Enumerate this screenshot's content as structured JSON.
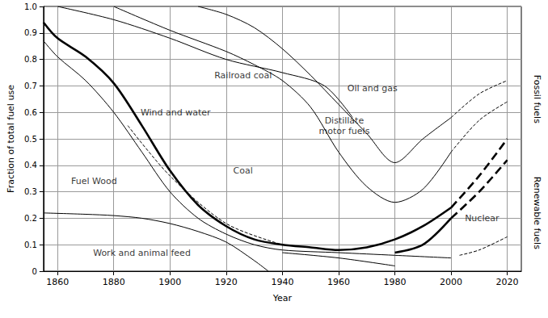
{
  "chart_data": {
    "type": "line",
    "xlabel": "Year",
    "ylabel": "Fraction of total fuel use",
    "xlim": [
      1855,
      2025
    ],
    "xticks": [
      1860,
      1880,
      1900,
      1920,
      1940,
      1960,
      1980,
      2000,
      2020
    ],
    "ylim": [
      0,
      1
    ],
    "yticks": [
      0,
      0.1,
      0.2,
      0.3,
      0.4,
      0.5,
      0.6,
      0.7,
      0.8,
      0.9,
      {
        "value": 1,
        "label": "1.0"
      }
    ],
    "grid": true,
    "series": [
      {
        "color": "#000000",
        "line_style": "solid",
        "x": [
          1855,
          1870,
          1880,
          1890,
          1900,
          1910,
          1920,
          1930,
          1935
        ],
        "values": [
          0.22,
          0.215,
          0.21,
          0.2,
          0.18,
          0.15,
          0.11,
          0.04,
          0
        ]
      },
      {
        "color": "#000000",
        "line_style": "solid",
        "x": [
          1940,
          1960,
          1980
        ],
        "values": [
          0.07,
          0.05,
          0.02
        ]
      },
      {
        "color": "#000000",
        "line_style": "solid",
        "x": [
          1855,
          1860,
          1870,
          1880,
          1890,
          1900,
          1910,
          1920,
          1930,
          1940,
          1960,
          1980,
          2000
        ],
        "values": [
          0.87,
          0.81,
          0.72,
          0.6,
          0.45,
          0.3,
          0.2,
          0.14,
          0.1,
          0.08,
          0.07,
          0.06,
          0.05
        ]
      },
      {
        "color": "#000000",
        "line_style": "dashed",
        "x": [
          2003,
          2010,
          2020
        ],
        "values": [
          0.06,
          0.08,
          0.13
        ]
      },
      {
        "color": "#000000",
        "line_style": "bold",
        "x": [
          1855,
          1860,
          1870,
          1880,
          1890,
          1900,
          1910,
          1920,
          1930,
          1940,
          1950,
          1960,
          1970,
          1980,
          1990,
          2000
        ],
        "values": [
          0.94,
          0.88,
          0.81,
          0.71,
          0.55,
          0.38,
          0.25,
          0.17,
          0.12,
          0.1,
          0.09,
          0.08,
          0.09,
          0.12,
          0.17,
          0.24
        ]
      },
      {
        "color": "#000000",
        "line_style": "bold-dashed",
        "x": [
          2000,
          2010,
          2020
        ],
        "values": [
          0.24,
          0.36,
          0.5
        ]
      },
      {
        "color": "#000000",
        "line_style": "dashed",
        "x": [
          1885,
          1900,
          1920,
          1940
        ],
        "values": [
          0.55,
          0.36,
          0.18,
          0.1
        ]
      },
      {
        "color": "#000000",
        "line_style": "bold",
        "x": [
          1980,
          1990,
          2000
        ],
        "values": [
          0.07,
          0.1,
          0.2
        ]
      },
      {
        "color": "#000000",
        "line_style": "bold-dashed",
        "x": [
          2000,
          2010,
          2020
        ],
        "values": [
          0.2,
          0.3,
          0.42
        ]
      },
      {
        "color": "#000000",
        "line_style": "solid",
        "x": [
          1860,
          1880,
          1900,
          1920,
          1940,
          1955,
          1965
        ],
        "values": [
          1,
          0.95,
          0.88,
          0.8,
          0.75,
          0.7,
          0.58
        ]
      },
      {
        "color": "#000000",
        "line_style": "solid",
        "x": [
          1880,
          1900,
          1920,
          1930,
          1940,
          1950,
          1960,
          1970,
          1980,
          1990,
          2000
        ],
        "values": [
          1,
          0.91,
          0.83,
          0.78,
          0.72,
          0.62,
          0.45,
          0.32,
          0.26,
          0.31,
          0.45
        ]
      },
      {
        "color": "#000000",
        "line_style": "dashed",
        "x": [
          2000,
          2010,
          2020
        ],
        "values": [
          0.45,
          0.57,
          0.64
        ]
      },
      {
        "color": "#000000",
        "line_style": "solid",
        "x": [
          1910,
          1920,
          1930,
          1940,
          1950,
          1960,
          1970,
          1980,
          1990,
          2000
        ],
        "values": [
          1,
          0.97,
          0.92,
          0.84,
          0.74,
          0.63,
          0.52,
          0.41,
          0.5,
          0.58
        ]
      },
      {
        "color": "#000000",
        "line_style": "dashed",
        "x": [
          2000,
          2010,
          2020
        ],
        "values": [
          0.58,
          0.67,
          0.72
        ]
      }
    ],
    "annotations": [
      {
        "text": "Railroad coal",
        "x": 1926,
        "y": 0.74
      },
      {
        "text": "Oil and gas",
        "x": 1972,
        "y": 0.69
      },
      {
        "text": "Distillate\nmotor fuels",
        "x": 1962,
        "y": 0.55
      },
      {
        "text": "Coal",
        "x": 1926,
        "y": 0.38
      },
      {
        "text": "Fuel Wood",
        "x": 1873,
        "y": 0.34
      },
      {
        "text": "Wind and water",
        "x": 1902,
        "y": 0.6
      },
      {
        "text": "Work and animal feed",
        "x": 1890,
        "y": 0.07
      },
      {
        "text": "Nuclear",
        "x": 2011,
        "y": 0.2
      }
    ],
    "side_labels": [
      {
        "text": "Fossil fuels",
        "y": 0.65
      },
      {
        "text": "Renewable fuels",
        "y": 0.22
      }
    ]
  }
}
